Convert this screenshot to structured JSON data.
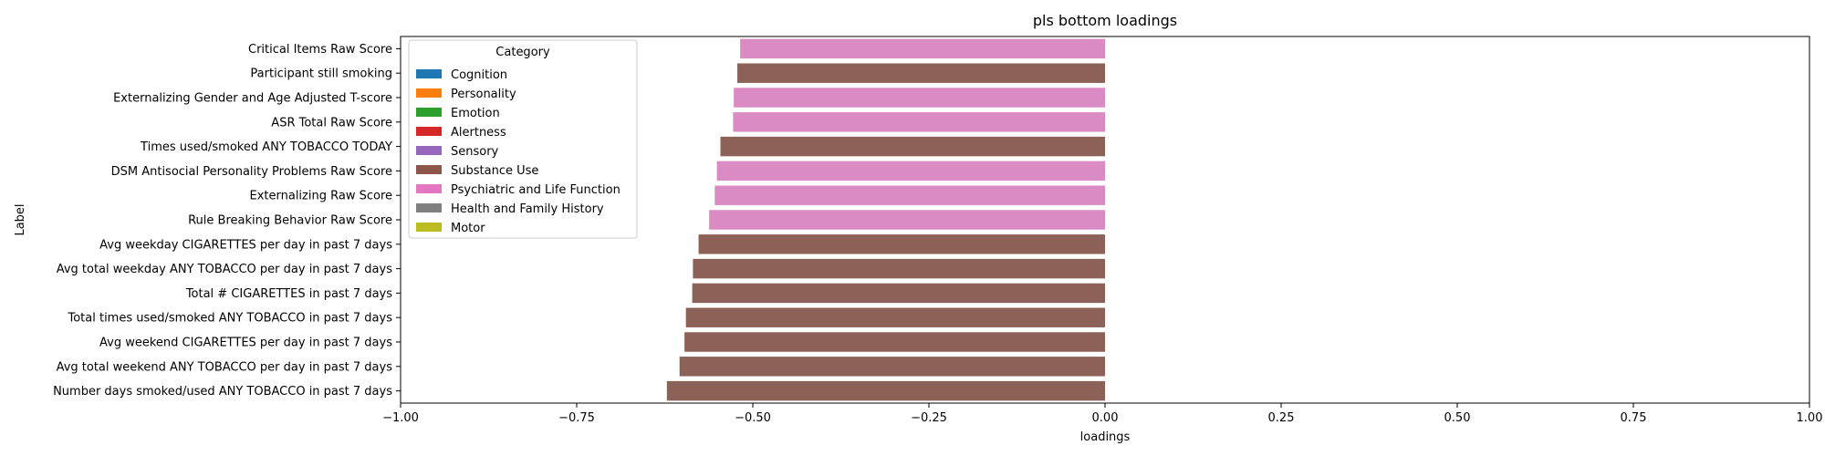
{
  "chart_data": {
    "type": "bar",
    "orientation": "horizontal",
    "title": "pls bottom loadings",
    "xlabel": "loadings",
    "ylabel": "Label",
    "xlim": [
      -1.0,
      1.0
    ],
    "x_ticks": [
      -1.0,
      -0.75,
      -0.5,
      -0.25,
      0.0,
      0.25,
      0.5,
      0.75,
      1.0
    ],
    "x_tick_labels": [
      "−1.00",
      "−0.75",
      "−0.50",
      "−0.25",
      "0.00",
      "0.25",
      "0.50",
      "0.75",
      "1.00"
    ],
    "grid": false,
    "legend": {
      "title": "Category",
      "placement": "top-left",
      "entries": [
        {
          "name": "Cognition",
          "color": "#1f77b4"
        },
        {
          "name": "Personality",
          "color": "#ff7f0e"
        },
        {
          "name": "Emotion",
          "color": "#2ca02c"
        },
        {
          "name": "Alertness",
          "color": "#d62728"
        },
        {
          "name": "Sensory",
          "color": "#9467bd"
        },
        {
          "name": "Substance Use",
          "color": "#8c564b"
        },
        {
          "name": "Psychiatric and Life Function",
          "color": "#e377c2"
        },
        {
          "name": "Health and Family History",
          "color": "#7f7f7f"
        },
        {
          "name": "Motor",
          "color": "#bcbd22"
        }
      ]
    },
    "bars": [
      {
        "label": "Critical Items Raw Score",
        "value": -0.518,
        "category": "Psychiatric and Life Function",
        "color": "#da8bc3"
      },
      {
        "label": "Participant still smoking",
        "value": -0.522,
        "category": "Substance Use",
        "color": "#8c6158"
      },
      {
        "label": "Externalizing Gender and Age Adjusted T-score",
        "value": -0.527,
        "category": "Psychiatric and Life Function",
        "color": "#da8bc3"
      },
      {
        "label": "ASR Total Raw Score",
        "value": -0.528,
        "category": "Psychiatric and Life Function",
        "color": "#da8bc3"
      },
      {
        "label": "Times used/smoked ANY TOBACCO TODAY",
        "value": -0.546,
        "category": "Substance Use",
        "color": "#8c6158"
      },
      {
        "label": "DSM Antisocial Personality Problems Raw Score",
        "value": -0.551,
        "category": "Psychiatric and Life Function",
        "color": "#da8bc3"
      },
      {
        "label": "Externalizing Raw Score",
        "value": -0.554,
        "category": "Psychiatric and Life Function",
        "color": "#da8bc3"
      },
      {
        "label": "Rule Breaking Behavior Raw Score",
        "value": -0.562,
        "category": "Psychiatric and Life Function",
        "color": "#da8bc3"
      },
      {
        "label": "Avg weekday CIGARETTES per day in past 7 days",
        "value": -0.577,
        "category": "Substance Use",
        "color": "#8c6158"
      },
      {
        "label": "Avg total weekday ANY TOBACCO per day in past 7 days",
        "value": -0.585,
        "category": "Substance Use",
        "color": "#8c6158"
      },
      {
        "label": "Total # CIGARETTES in past 7 days",
        "value": -0.586,
        "category": "Substance Use",
        "color": "#8c6158"
      },
      {
        "label": "Total times used/smoked ANY TOBACCO in past 7 days",
        "value": -0.595,
        "category": "Substance Use",
        "color": "#8c6158"
      },
      {
        "label": "Avg weekend CIGARETTES per day in past 7 days",
        "value": -0.597,
        "category": "Substance Use",
        "color": "#8c6158"
      },
      {
        "label": "Avg total weekend ANY TOBACCO per day in past 7 days",
        "value": -0.604,
        "category": "Substance Use",
        "color": "#8c6158"
      },
      {
        "label": "Number days smoked/used ANY TOBACCO in past 7 days",
        "value": -0.622,
        "category": "Substance Use",
        "color": "#8c6158"
      }
    ]
  }
}
